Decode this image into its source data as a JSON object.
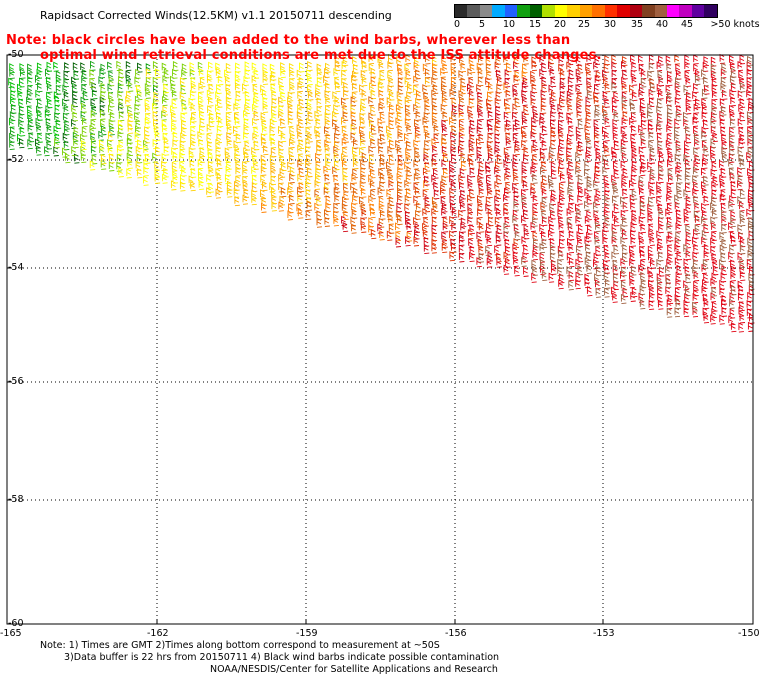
{
  "title": "Rapidsact Corrected Winds(12.5KM) v1.1 20150711 descending",
  "note_red": [
    "Note: black circles have been added to the wind barbs, wherever less than",
    "optimal wind retrieval conditions are met due to the ISS attitude changes."
  ],
  "legend": {
    "labels": [
      "0",
      "5",
      "10",
      "15",
      "20",
      "25",
      "30",
      "35",
      "40",
      "45",
      ">50 knots"
    ],
    "colors": [
      "#2a2a2a",
      "#5a5a5a",
      "#8a8a8a",
      "#00aaff",
      "#2060ff",
      "#10a010",
      "#006000",
      "#b0e000",
      "#ffff00",
      "#ffd000",
      "#ffa000",
      "#ff7000",
      "#ff3000",
      "#e00000",
      "#b00010",
      "#804020",
      "#a06040",
      "#ff00ff",
      "#c000c0",
      "#6000a0",
      "#300060"
    ]
  },
  "axes": {
    "lat_labels": [
      "-50",
      "-52",
      "-54",
      "-56",
      "-58",
      "-60"
    ],
    "lon_labels": [
      "-165",
      "-162",
      "-159",
      "-156",
      "-153",
      "-150"
    ]
  },
  "footer": {
    "line1": "Note: 1) Times are GMT 2)Times along bottom correspond to measurement at ~50S",
    "line2": "3)Data buffer is 22 hrs from 20150711 4) Black wind barbs indicate possible contamination",
    "line3": "NOAA/NESDIS/Center for Satellite Applications and Research"
  }
}
